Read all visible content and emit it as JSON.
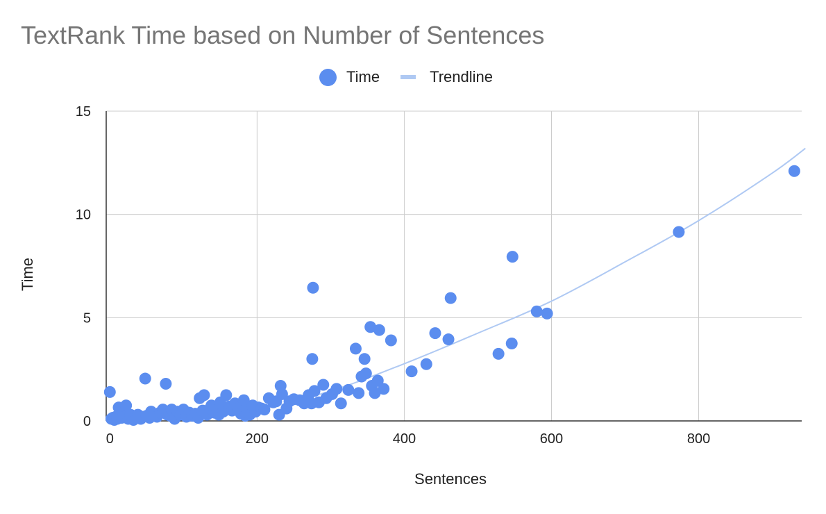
{
  "chart_data": {
    "type": "scatter",
    "title": "TextRank Time based on Number of Sentences",
    "xlabel": "Sentences",
    "ylabel": "Time",
    "xlim": [
      -5,
      940
    ],
    "ylim": [
      0,
      15
    ],
    "xticks": [
      0,
      200,
      400,
      600,
      800
    ],
    "yticks": [
      0,
      5,
      10,
      15
    ],
    "grid": true,
    "legend_position": "top",
    "series": [
      {
        "name": "Time",
        "color": "#5B8DEF",
        "points": [
          [
            0,
            1.4
          ],
          [
            2,
            0.1
          ],
          [
            4,
            0.15
          ],
          [
            6,
            0.05
          ],
          [
            8,
            0.2
          ],
          [
            10,
            0.1
          ],
          [
            12,
            0.65
          ],
          [
            14,
            0.3
          ],
          [
            16,
            0.15
          ],
          [
            18,
            0.4
          ],
          [
            20,
            0.2
          ],
          [
            22,
            0.75
          ],
          [
            25,
            0.1
          ],
          [
            28,
            0.3
          ],
          [
            32,
            0.05
          ],
          [
            36,
            0.15
          ],
          [
            38,
            0.3
          ],
          [
            42,
            0.1
          ],
          [
            45,
            0.2
          ],
          [
            48,
            2.05
          ],
          [
            50,
            0.25
          ],
          [
            54,
            0.15
          ],
          [
            56,
            0.45
          ],
          [
            60,
            0.3
          ],
          [
            64,
            0.2
          ],
          [
            68,
            0.4
          ],
          [
            72,
            0.55
          ],
          [
            76,
            1.8
          ],
          [
            78,
            0.3
          ],
          [
            82,
            0.25
          ],
          [
            84,
            0.55
          ],
          [
            88,
            0.1
          ],
          [
            92,
            0.45
          ],
          [
            96,
            0.3
          ],
          [
            100,
            0.55
          ],
          [
            104,
            0.2
          ],
          [
            108,
            0.4
          ],
          [
            112,
            0.25
          ],
          [
            116,
            0.35
          ],
          [
            120,
            0.15
          ],
          [
            122,
            1.1
          ],
          [
            126,
            0.5
          ],
          [
            128,
            1.25
          ],
          [
            132,
            0.3
          ],
          [
            136,
            0.6
          ],
          [
            138,
            0.75
          ],
          [
            142,
            0.4
          ],
          [
            146,
            0.55
          ],
          [
            148,
            0.3
          ],
          [
            150,
            0.9
          ],
          [
            154,
            0.45
          ],
          [
            158,
            1.25
          ],
          [
            162,
            0.7
          ],
          [
            166,
            0.5
          ],
          [
            170,
            0.85
          ],
          [
            174,
            0.6
          ],
          [
            178,
            0.35
          ],
          [
            182,
            1.0
          ],
          [
            184,
            0.25
          ],
          [
            186,
            0.55
          ],
          [
            190,
            0.3
          ],
          [
            194,
            0.75
          ],
          [
            198,
            0.45
          ],
          [
            202,
            0.65
          ],
          [
            206,
            0.6
          ],
          [
            210,
            0.55
          ],
          [
            216,
            1.1
          ],
          [
            222,
            0.9
          ],
          [
            226,
            0.95
          ],
          [
            230,
            0.3
          ],
          [
            232,
            1.7
          ],
          [
            234,
            1.3
          ],
          [
            240,
            0.6
          ],
          [
            244,
            0.95
          ],
          [
            250,
            1.05
          ],
          [
            258,
            1.0
          ],
          [
            264,
            0.85
          ],
          [
            270,
            1.25
          ],
          [
            274,
            0.85
          ],
          [
            276,
            6.45
          ],
          [
            275,
            3.0
          ],
          [
            278,
            1.45
          ],
          [
            284,
            0.9
          ],
          [
            290,
            1.75
          ],
          [
            294,
            1.1
          ],
          [
            302,
            1.3
          ],
          [
            308,
            1.55
          ],
          [
            314,
            0.85
          ],
          [
            324,
            1.5
          ],
          [
            334,
            3.5
          ],
          [
            338,
            1.35
          ],
          [
            342,
            2.15
          ],
          [
            346,
            3.0
          ],
          [
            348,
            2.3
          ],
          [
            354,
            4.55
          ],
          [
            356,
            1.7
          ],
          [
            360,
            1.35
          ],
          [
            364,
            1.95
          ],
          [
            366,
            4.4
          ],
          [
            372,
            1.55
          ],
          [
            382,
            3.9
          ],
          [
            410,
            2.4
          ],
          [
            430,
            2.75
          ],
          [
            442,
            4.25
          ],
          [
            460,
            3.95
          ],
          [
            463,
            5.95
          ],
          [
            528,
            3.25
          ],
          [
            546,
            3.75
          ],
          [
            547,
            7.95
          ],
          [
            580,
            5.3
          ],
          [
            594,
            5.2
          ],
          [
            773,
            9.15
          ],
          [
            930,
            12.1
          ]
        ]
      },
      {
        "name": "Trendline",
        "color": "#AFC9F3",
        "x": [
          0,
          100,
          200,
          300,
          400,
          500,
          600,
          700,
          800,
          900,
          945
        ],
        "values": [
          0.2,
          0.22,
          0.55,
          1.45,
          2.77,
          4.25,
          5.8,
          7.7,
          9.7,
          12.0,
          13.2
        ]
      }
    ]
  }
}
